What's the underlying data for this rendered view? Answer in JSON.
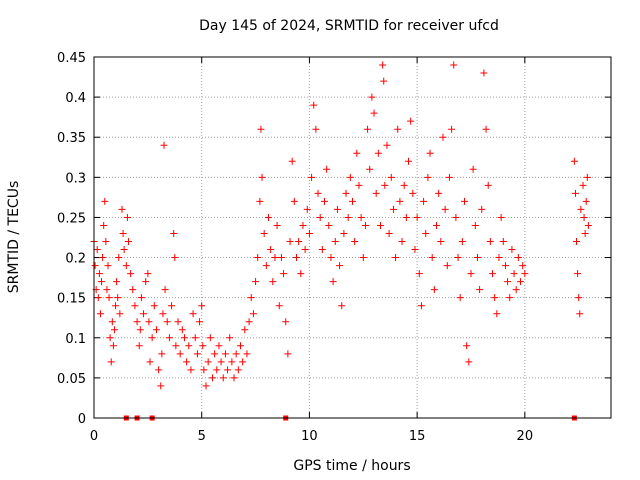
{
  "chart_data": {
    "type": "scatter",
    "title": "Day 145 of 2024, SRMTID for receiver ufcd",
    "xlabel": "GPS time / hours",
    "ylabel": "SRMTID / TECUs",
    "xlim": [
      0,
      24
    ],
    "ylim": [
      0,
      0.45
    ],
    "xticks": [
      0,
      5,
      10,
      15,
      20
    ],
    "xtick_labels": [
      "0",
      "5",
      "10",
      "15",
      "20"
    ],
    "yticks": [
      0,
      0.05,
      0.1,
      0.15,
      0.2,
      0.25,
      0.3,
      0.35,
      0.4,
      0.45
    ],
    "ytick_labels": [
      "0",
      "0.05",
      "0.1",
      "0.15",
      "0.2",
      "0.25",
      "0.3",
      "0.35",
      "0.4",
      "0.45"
    ],
    "grid": true,
    "marker": "+",
    "color": "#ff0000",
    "zero_markers_x": [
      1.5,
      2.0,
      2.7,
      8.9,
      22.3
    ],
    "series": [
      {
        "name": "SRMTID",
        "points": [
          [
            0.0,
            0.22
          ],
          [
            0.05,
            0.19
          ],
          [
            0.1,
            0.16
          ],
          [
            0.15,
            0.21
          ],
          [
            0.2,
            0.15
          ],
          [
            0.25,
            0.18
          ],
          [
            0.3,
            0.13
          ],
          [
            0.35,
            0.17
          ],
          [
            0.4,
            0.2
          ],
          [
            0.45,
            0.24
          ],
          [
            0.5,
            0.27
          ],
          [
            0.55,
            0.22
          ],
          [
            0.6,
            0.16
          ],
          [
            0.65,
            0.19
          ],
          [
            0.7,
            0.15
          ],
          [
            0.75,
            0.1
          ],
          [
            0.8,
            0.07
          ],
          [
            0.85,
            0.12
          ],
          [
            0.9,
            0.09
          ],
          [
            0.95,
            0.11
          ],
          [
            1.0,
            0.14
          ],
          [
            1.05,
            0.17
          ],
          [
            1.1,
            0.15
          ],
          [
            1.15,
            0.2
          ],
          [
            1.2,
            0.13
          ],
          [
            1.3,
            0.26
          ],
          [
            1.35,
            0.23
          ],
          [
            1.4,
            0.21
          ],
          [
            1.5,
            0.19
          ],
          [
            1.55,
            0.25
          ],
          [
            1.6,
            0.22
          ],
          [
            1.7,
            0.18
          ],
          [
            1.8,
            0.16
          ],
          [
            1.9,
            0.14
          ],
          [
            2.0,
            0.12
          ],
          [
            2.1,
            0.09
          ],
          [
            2.15,
            0.11
          ],
          [
            2.2,
            0.15
          ],
          [
            2.3,
            0.13
          ],
          [
            2.4,
            0.17
          ],
          [
            2.5,
            0.18
          ],
          [
            2.55,
            0.12
          ],
          [
            2.6,
            0.07
          ],
          [
            2.7,
            0.1
          ],
          [
            2.8,
            0.14
          ],
          [
            2.9,
            0.11
          ],
          [
            3.0,
            0.06
          ],
          [
            3.1,
            0.04
          ],
          [
            3.15,
            0.08
          ],
          [
            3.2,
            0.13
          ],
          [
            3.25,
            0.34
          ],
          [
            3.3,
            0.16
          ],
          [
            3.4,
            0.12
          ],
          [
            3.5,
            0.1
          ],
          [
            3.6,
            0.14
          ],
          [
            3.7,
            0.23
          ],
          [
            3.75,
            0.2
          ],
          [
            3.8,
            0.09
          ],
          [
            3.9,
            0.12
          ],
          [
            4.0,
            0.08
          ],
          [
            4.1,
            0.11
          ],
          [
            4.2,
            0.1
          ],
          [
            4.3,
            0.07
          ],
          [
            4.4,
            0.09
          ],
          [
            4.5,
            0.06
          ],
          [
            4.6,
            0.13
          ],
          [
            4.7,
            0.1
          ],
          [
            4.8,
            0.08
          ],
          [
            4.9,
            0.12
          ],
          [
            5.0,
            0.14
          ],
          [
            5.05,
            0.09
          ],
          [
            5.1,
            0.06
          ],
          [
            5.2,
            0.04
          ],
          [
            5.3,
            0.07
          ],
          [
            5.4,
            0.1
          ],
          [
            5.5,
            0.05
          ],
          [
            5.6,
            0.08
          ],
          [
            5.7,
            0.06
          ],
          [
            5.8,
            0.09
          ],
          [
            5.9,
            0.07
          ],
          [
            6.0,
            0.05
          ],
          [
            6.1,
            0.08
          ],
          [
            6.2,
            0.06
          ],
          [
            6.3,
            0.1
          ],
          [
            6.4,
            0.07
          ],
          [
            6.5,
            0.05
          ],
          [
            6.6,
            0.08
          ],
          [
            6.7,
            0.06
          ],
          [
            6.8,
            0.09
          ],
          [
            6.9,
            0.07
          ],
          [
            7.0,
            0.11
          ],
          [
            7.1,
            0.08
          ],
          [
            7.2,
            0.12
          ],
          [
            7.3,
            0.15
          ],
          [
            7.4,
            0.13
          ],
          [
            7.5,
            0.17
          ],
          [
            7.6,
            0.2
          ],
          [
            7.7,
            0.27
          ],
          [
            7.75,
            0.36
          ],
          [
            7.8,
            0.3
          ],
          [
            7.9,
            0.23
          ],
          [
            8.0,
            0.19
          ],
          [
            8.1,
            0.25
          ],
          [
            8.2,
            0.21
          ],
          [
            8.3,
            0.17
          ],
          [
            8.4,
            0.2
          ],
          [
            8.5,
            0.24
          ],
          [
            8.6,
            0.14
          ],
          [
            8.7,
            0.2
          ],
          [
            8.8,
            0.18
          ],
          [
            8.9,
            0.12
          ],
          [
            9.0,
            0.08
          ],
          [
            9.1,
            0.22
          ],
          [
            9.2,
            0.32
          ],
          [
            9.3,
            0.27
          ],
          [
            9.4,
            0.2
          ],
          [
            9.5,
            0.22
          ],
          [
            9.6,
            0.18
          ],
          [
            9.7,
            0.24
          ],
          [
            9.8,
            0.21
          ],
          [
            9.9,
            0.26
          ],
          [
            10.0,
            0.23
          ],
          [
            10.1,
            0.3
          ],
          [
            10.2,
            0.39
          ],
          [
            10.3,
            0.36
          ],
          [
            10.4,
            0.28
          ],
          [
            10.5,
            0.25
          ],
          [
            10.6,
            0.21
          ],
          [
            10.7,
            0.27
          ],
          [
            10.8,
            0.31
          ],
          [
            10.9,
            0.24
          ],
          [
            11.0,
            0.2
          ],
          [
            11.1,
            0.17
          ],
          [
            11.2,
            0.22
          ],
          [
            11.3,
            0.26
          ],
          [
            11.4,
            0.19
          ],
          [
            11.5,
            0.14
          ],
          [
            11.6,
            0.23
          ],
          [
            11.7,
            0.28
          ],
          [
            11.8,
            0.25
          ],
          [
            11.9,
            0.3
          ],
          [
            12.0,
            0.27
          ],
          [
            12.1,
            0.22
          ],
          [
            12.2,
            0.33
          ],
          [
            12.3,
            0.29
          ],
          [
            12.4,
            0.25
          ],
          [
            12.5,
            0.2
          ],
          [
            12.6,
            0.24
          ],
          [
            12.7,
            0.36
          ],
          [
            12.8,
            0.31
          ],
          [
            12.9,
            0.4
          ],
          [
            13.0,
            0.38
          ],
          [
            13.1,
            0.28
          ],
          [
            13.2,
            0.33
          ],
          [
            13.3,
            0.24
          ],
          [
            13.4,
            0.44
          ],
          [
            13.45,
            0.42
          ],
          [
            13.5,
            0.29
          ],
          [
            13.6,
            0.34
          ],
          [
            13.7,
            0.23
          ],
          [
            13.8,
            0.3
          ],
          [
            13.9,
            0.26
          ],
          [
            14.0,
            0.2
          ],
          [
            14.1,
            0.36
          ],
          [
            14.2,
            0.27
          ],
          [
            14.3,
            0.22
          ],
          [
            14.4,
            0.29
          ],
          [
            14.5,
            0.25
          ],
          [
            14.6,
            0.32
          ],
          [
            14.7,
            0.37
          ],
          [
            14.8,
            0.28
          ],
          [
            14.9,
            0.21
          ],
          [
            15.0,
            0.25
          ],
          [
            15.1,
            0.18
          ],
          [
            15.2,
            0.14
          ],
          [
            15.3,
            0.27
          ],
          [
            15.4,
            0.23
          ],
          [
            15.5,
            0.3
          ],
          [
            15.6,
            0.33
          ],
          [
            15.7,
            0.2
          ],
          [
            15.8,
            0.16
          ],
          [
            15.9,
            0.24
          ],
          [
            16.0,
            0.28
          ],
          [
            16.1,
            0.22
          ],
          [
            16.2,
            0.35
          ],
          [
            16.3,
            0.26
          ],
          [
            16.4,
            0.19
          ],
          [
            16.5,
            0.3
          ],
          [
            16.6,
            0.36
          ],
          [
            16.7,
            0.44
          ],
          [
            16.8,
            0.25
          ],
          [
            16.9,
            0.2
          ],
          [
            17.0,
            0.15
          ],
          [
            17.1,
            0.22
          ],
          [
            17.2,
            0.27
          ],
          [
            17.3,
            0.09
          ],
          [
            17.4,
            0.07
          ],
          [
            17.5,
            0.18
          ],
          [
            17.6,
            0.31
          ],
          [
            17.7,
            0.24
          ],
          [
            17.8,
            0.2
          ],
          [
            17.9,
            0.16
          ],
          [
            18.0,
            0.26
          ],
          [
            18.1,
            0.43
          ],
          [
            18.2,
            0.36
          ],
          [
            18.3,
            0.29
          ],
          [
            18.4,
            0.22
          ],
          [
            18.5,
            0.18
          ],
          [
            18.6,
            0.15
          ],
          [
            18.7,
            0.13
          ],
          [
            18.8,
            0.2
          ],
          [
            18.9,
            0.25
          ],
          [
            19.0,
            0.22
          ],
          [
            19.1,
            0.19
          ],
          [
            19.2,
            0.17
          ],
          [
            19.3,
            0.15
          ],
          [
            19.4,
            0.21
          ],
          [
            19.5,
            0.18
          ],
          [
            19.6,
            0.16
          ],
          [
            19.7,
            0.2
          ],
          [
            19.8,
            0.17
          ],
          [
            19.9,
            0.19
          ],
          [
            20.0,
            0.18
          ],
          [
            22.3,
            0.32
          ],
          [
            22.35,
            0.28
          ],
          [
            22.4,
            0.22
          ],
          [
            22.45,
            0.18
          ],
          [
            22.5,
            0.15
          ],
          [
            22.55,
            0.13
          ],
          [
            22.6,
            0.26
          ],
          [
            22.7,
            0.29
          ],
          [
            22.75,
            0.25
          ],
          [
            22.8,
            0.23
          ],
          [
            22.85,
            0.27
          ],
          [
            22.9,
            0.3
          ],
          [
            22.95,
            0.24
          ]
        ]
      }
    ]
  }
}
